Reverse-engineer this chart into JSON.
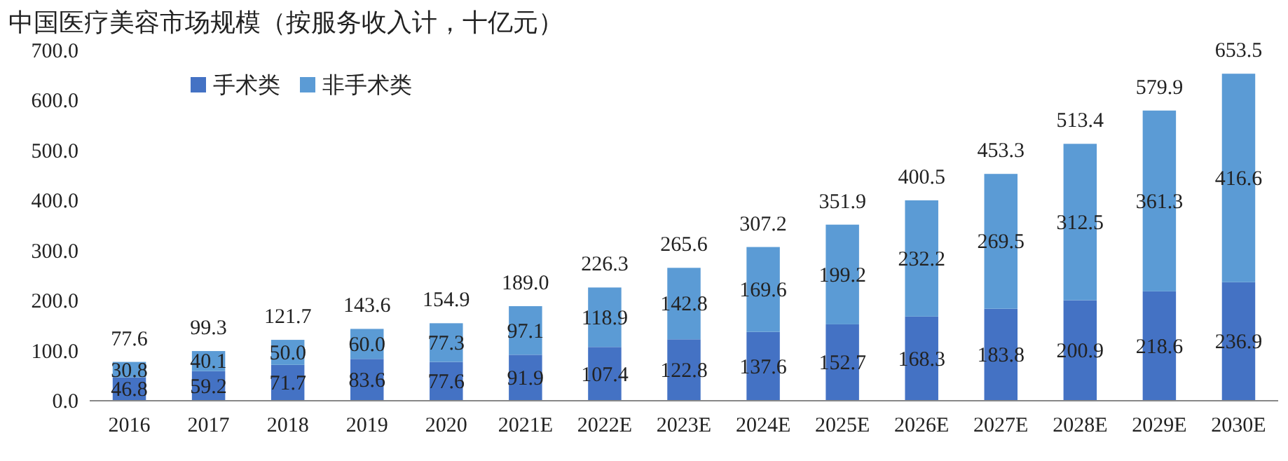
{
  "chart_data": {
    "type": "bar",
    "title": "中国医疗美容市场规模（按服务收入计，十亿元）",
    "stacked": true,
    "legend": "top left",
    "grid": false,
    "categories": [
      "2016",
      "2017",
      "2018",
      "2019",
      "2020",
      "2021E",
      "2022E",
      "2023E",
      "2024E",
      "2025E",
      "2026E",
      "2027E",
      "2028E",
      "2029E",
      "2030E"
    ],
    "series": [
      {
        "name": "手术类",
        "color": "#4472c4",
        "values": [
          46.8,
          59.2,
          71.7,
          83.6,
          77.6,
          91.9,
          107.4,
          122.8,
          137.6,
          152.7,
          168.3,
          183.8,
          200.9,
          218.6,
          236.9
        ],
        "value_labels": [
          "46.8",
          "59.2",
          "71.7",
          "83.6",
          "77.6",
          "91.9",
          "107.4",
          "122.8",
          "137.6",
          "152.7",
          "168.3",
          "183.8",
          "200.9",
          "218.6",
          "236.9"
        ]
      },
      {
        "name": "非手术类",
        "color": "#5b9bd5",
        "values": [
          30.8,
          40.1,
          50.0,
          60.0,
          77.3,
          97.1,
          118.9,
          142.8,
          169.6,
          199.2,
          232.2,
          269.5,
          312.5,
          361.3,
          416.6
        ],
        "value_labels": [
          "30.8",
          "40.1",
          "50.0",
          "60.0",
          "77.3",
          "97.1",
          "118.9",
          "142.8",
          "169.6",
          "199.2",
          "232.2",
          "269.5",
          "312.5",
          "361.3",
          "416.6"
        ]
      }
    ],
    "totals": [
      "77.6",
      "99.3",
      "121.7",
      "143.6",
      "154.9",
      "189.0",
      "226.3",
      "265.6",
      "307.2",
      "351.9",
      "400.5",
      "453.3",
      "513.4",
      "579.9",
      "653.5"
    ],
    "ylim": [
      0,
      700
    ],
    "yticks": [
      {
        "value": 0,
        "label": "0.0"
      },
      {
        "value": 100,
        "label": "100.0"
      },
      {
        "value": 200,
        "label": "200.0"
      },
      {
        "value": 300,
        "label": "300.0"
      },
      {
        "value": 400,
        "label": "400.0"
      },
      {
        "value": 500,
        "label": "500.0"
      },
      {
        "value": 600,
        "label": "600.0"
      },
      {
        "value": 700,
        "label": "700.0"
      }
    ]
  }
}
